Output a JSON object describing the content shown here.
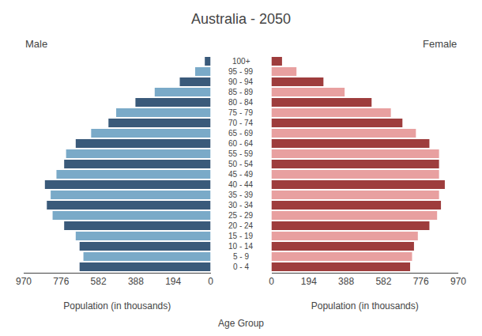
{
  "chart_data": {
    "type": "pyramid",
    "title": "Australia - 2050",
    "orientation": "horizontal",
    "categories": [
      "100+",
      "95 - 99",
      "90 - 94",
      "85 - 89",
      "80 - 84",
      "75 - 79",
      "70 - 74",
      "65 - 69",
      "60 - 64",
      "55 - 59",
      "50 - 54",
      "45 - 49",
      "40 - 44",
      "35 - 39",
      "30 - 34",
      "25 - 29",
      "20 - 24",
      "15 - 19",
      "10 - 14",
      "5 - 9",
      "0 - 4"
    ],
    "series": [
      {
        "name": "Male",
        "xlabel": "Population (in thousands)",
        "values": [
          30,
          80,
          160,
          290,
          390,
          490,
          530,
          620,
          700,
          750,
          760,
          800,
          860,
          830,
          850,
          820,
          760,
          700,
          680,
          660,
          680
        ],
        "colors": [
          "#3a5a7a",
          "#7aaac8",
          "#3a5a7a",
          "#7aaac8",
          "#3a5a7a",
          "#7aaac8",
          "#3a5a7a",
          "#7aaac8",
          "#3a5a7a",
          "#7aaac8",
          "#3a5a7a",
          "#7aaac8",
          "#3a5a7a",
          "#7aaac8",
          "#3a5a7a",
          "#7aaac8",
          "#3a5a7a",
          "#7aaac8",
          "#3a5a7a",
          "#7aaac8",
          "#3a5a7a"
        ]
      },
      {
        "name": "Female",
        "xlabel": "Population (in thousands)",
        "values": [
          55,
          130,
          270,
          380,
          520,
          620,
          680,
          750,
          820,
          870,
          870,
          870,
          900,
          870,
          880,
          860,
          820,
          760,
          740,
          730,
          720
        ],
        "colors": [
          "#9e3d3d",
          "#e8a0a0",
          "#9e3d3d",
          "#e8a0a0",
          "#9e3d3d",
          "#e8a0a0",
          "#9e3d3d",
          "#e8a0a0",
          "#9e3d3d",
          "#e8a0a0",
          "#9e3d3d",
          "#e8a0a0",
          "#9e3d3d",
          "#e8a0a0",
          "#9e3d3d",
          "#e8a0a0",
          "#9e3d3d",
          "#e8a0a0",
          "#9e3d3d",
          "#e8a0a0",
          "#9e3d3d"
        ]
      }
    ],
    "ylabel": "Age Group",
    "xlim": [
      0,
      970
    ],
    "xticks": [
      0,
      194,
      388,
      582,
      776,
      970
    ],
    "grid": false
  }
}
